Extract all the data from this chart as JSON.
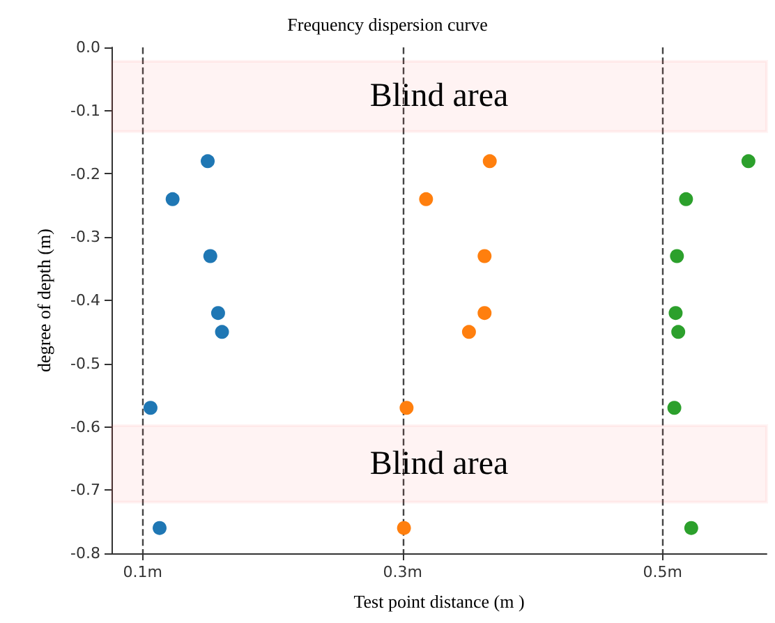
{
  "chart_data": {
    "type": "scatter",
    "title": "Frequency dispersion curve",
    "xlabel": "Test point distance (m )",
    "ylabel": "degree of depth (m)",
    "xlim": [
      0.076,
      0.58
    ],
    "ylim": [
      -0.8,
      0
    ],
    "xticks": [
      {
        "value": 0.1,
        "label": "0.1m"
      },
      {
        "value": 0.3,
        "label": "0.3m"
      },
      {
        "value": 0.5,
        "label": "0.5m"
      }
    ],
    "yticks": [
      {
        "value": -0.8,
        "label": "-0.8"
      },
      {
        "value": -0.7,
        "label": "-0.7"
      },
      {
        "value": -0.6,
        "label": "-0.6"
      },
      {
        "value": -0.5,
        "label": "-0.5"
      },
      {
        "value": -0.4,
        "label": "-0.4"
      },
      {
        "value": -0.3,
        "label": "-0.3"
      },
      {
        "value": -0.2,
        "label": "-0.2"
      },
      {
        "value": -0.1,
        "label": "-0.1"
      },
      {
        "value": 0,
        "label": "0.0"
      }
    ],
    "grid": "x",
    "marker": "circle",
    "series": [
      {
        "color": "#1f77b4",
        "x": [
          0.15,
          0.123,
          0.152,
          0.158,
          0.161,
          0.106,
          0.113
        ],
        "values": [
          -0.18,
          -0.24,
          -0.33,
          -0.42,
          -0.45,
          -0.57,
          -0.76
        ]
      },
      {
        "color": "#ff7f0e",
        "x": [
          0.367,
          0.318,
          0.363,
          0.363,
          0.351,
          0.303,
          0.301
        ],
        "values": [
          -0.18,
          -0.24,
          -0.33,
          -0.42,
          -0.45,
          -0.57,
          -0.76
        ]
      },
      {
        "color": "#2ca02c",
        "x": [
          0.566,
          0.518,
          0.511,
          0.51,
          0.512,
          0.509,
          0.522
        ],
        "values": [
          -0.18,
          -0.24,
          -0.33,
          -0.42,
          -0.45,
          -0.57,
          -0.76
        ]
      }
    ],
    "bands": [
      {
        "axis": "y",
        "from": -0.022,
        "to": -0.133,
        "label": "Blind area",
        "color": "#ff3b3b"
      },
      {
        "axis": "y",
        "from": -0.598,
        "to": -0.719,
        "label": "Blind area",
        "color": "#ff3b3b"
      }
    ]
  }
}
